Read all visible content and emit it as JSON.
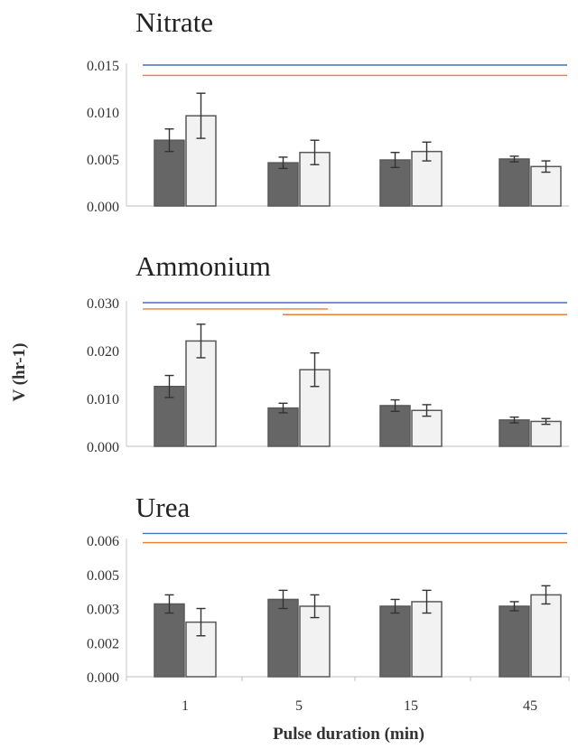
{
  "chart_data": [
    {
      "type": "bar",
      "title": "Nitrate",
      "categories": [
        "1",
        "5",
        "15",
        "45"
      ],
      "ylim": [
        0,
        0.015
      ],
      "yticks": [
        "0.000",
        "0.005",
        "0.010",
        "0.015"
      ],
      "series": [
        {
          "color": "#666666",
          "values": [
            0.007,
            0.0046,
            0.0049,
            0.005
          ],
          "errors": [
            0.0012,
            0.0006,
            0.0008,
            0.0003
          ]
        },
        {
          "color": "#f2f2f2",
          "values": [
            0.0096,
            0.0057,
            0.0058,
            0.0042
          ],
          "errors": [
            0.0024,
            0.0013,
            0.001,
            0.0006
          ]
        }
      ],
      "significance_lines": [
        {
          "color": "#4472c4",
          "from": 0,
          "to": 3,
          "y": 0.015
        },
        {
          "color": "#ed7d31",
          "from": 0,
          "to": 3,
          "y": 0.0139
        }
      ]
    },
    {
      "type": "bar",
      "title": "Ammonium",
      "categories": [
        "1",
        "5",
        "15",
        "45"
      ],
      "ylim": [
        0,
        0.03
      ],
      "yticks": [
        "0.000",
        "0.010",
        "0.020",
        "0.030"
      ],
      "series": [
        {
          "color": "#666666",
          "values": [
            0.0125,
            0.008,
            0.0085,
            0.0055
          ],
          "errors": [
            0.0023,
            0.001,
            0.0012,
            0.0006
          ]
        },
        {
          "color": "#f2f2f2",
          "values": [
            0.022,
            0.016,
            0.0075,
            0.0052
          ],
          "errors": [
            0.0035,
            0.0035,
            0.0012,
            0.0006
          ]
        }
      ],
      "significance_lines": [
        {
          "color": "#4472c4",
          "from": 0,
          "to": 3,
          "y": 0.03
        },
        {
          "color": "#ed7d31",
          "from": 0,
          "to": 1,
          "y": 0.0287
        },
        {
          "color": "#ed7d31",
          "from": 1,
          "to": 3,
          "y": 0.0275
        }
      ]
    },
    {
      "type": "bar",
      "title": "Urea",
      "categories": [
        "1",
        "5",
        "15",
        "45"
      ],
      "ylim": [
        0,
        0.006
      ],
      "yticks": [
        "0.000",
        "0.002",
        "0.003",
        "0.005",
        "0.006"
      ],
      "xlabel": "Pulse duration (min)",
      "series": [
        {
          "color": "#666666",
          "values": [
            0.0032,
            0.0034,
            0.0031,
            0.0031
          ],
          "errors": [
            0.0004,
            0.0004,
            0.0003,
            0.0002
          ]
        },
        {
          "color": "#f2f2f2",
          "values": [
            0.0024,
            0.0031,
            0.0033,
            0.0036
          ],
          "errors": [
            0.0006,
            0.0005,
            0.0005,
            0.0004
          ]
        }
      ],
      "significance_lines": [
        {
          "color": "#4472c4",
          "from": 0,
          "to": 3,
          "y": 0.0063
        },
        {
          "color": "#ed7d31",
          "from": 0,
          "to": 3,
          "y": 0.0059
        }
      ]
    }
  ],
  "ylabel": "V (hr-1)"
}
